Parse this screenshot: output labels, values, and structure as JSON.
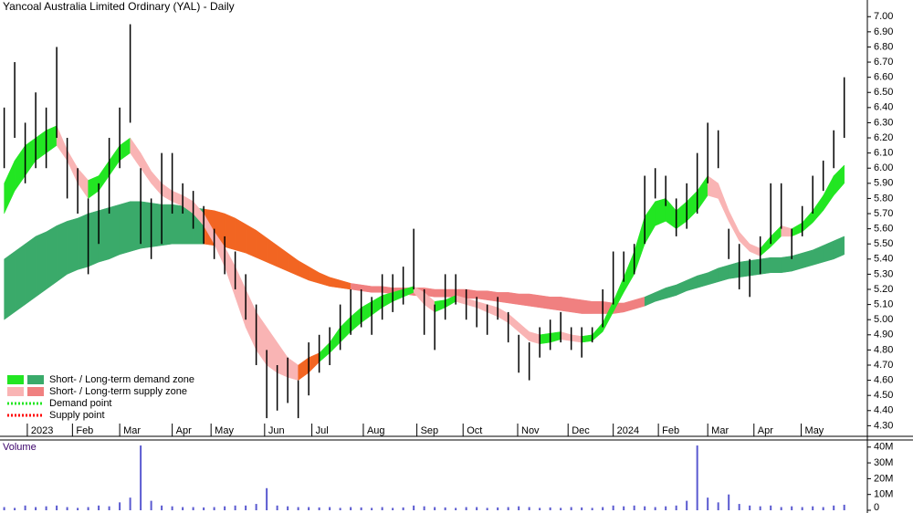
{
  "chart_data": {
    "type": "price-bars",
    "title": "Yancoal Australia Limited Ordinary (YAL) - Daily",
    "volume_title": "Volume",
    "legend": [
      "Short- / Long-term demand zone",
      "Short- / Long-term supply zone",
      "Demand point",
      "Supply point"
    ],
    "legend_colors": [
      [
        "#22e622",
        "#3aaa6a"
      ],
      [
        "#f9b4b4",
        "#f08080"
      ],
      [
        "#22e622"
      ],
      [
        "#ff0000"
      ]
    ],
    "xlim": [
      -0.4,
      82.2
    ],
    "xticks": [
      {
        "value": 2.2,
        "label": "2023"
      },
      {
        "value": 6.5,
        "label": "Feb"
      },
      {
        "value": 11,
        "label": "Mar"
      },
      {
        "value": 16,
        "label": "Apr"
      },
      {
        "value": 19.7,
        "label": "May"
      },
      {
        "value": 24.8,
        "label": "Jun"
      },
      {
        "value": 29.3,
        "label": "Jul"
      },
      {
        "value": 34.2,
        "label": "Aug"
      },
      {
        "value": 39.3,
        "label": "Sep"
      },
      {
        "value": 43.7,
        "label": "Oct"
      },
      {
        "value": 48.9,
        "label": "Nov"
      },
      {
        "value": 53.7,
        "label": "Dec"
      },
      {
        "value": 58,
        "label": "2024"
      },
      {
        "value": 62.3,
        "label": "Feb"
      },
      {
        "value": 67,
        "label": "Mar"
      },
      {
        "value": 71.4,
        "label": "Apr"
      },
      {
        "value": 75.9,
        "label": "May"
      }
    ],
    "ylim": [
      4.23,
      7.11
    ],
    "yticks": [
      {
        "value": 4.3,
        "label": "4.30"
      },
      {
        "value": 4.4,
        "label": "4.40"
      },
      {
        "value": 4.5,
        "label": "4.50"
      },
      {
        "value": 4.6,
        "label": "4.60"
      },
      {
        "value": 4.7,
        "label": "4.70"
      },
      {
        "value": 4.8,
        "label": "4.80"
      },
      {
        "value": 4.9,
        "label": "4.90"
      },
      {
        "value": 5.0,
        "label": "5.00"
      },
      {
        "value": 5.1,
        "label": "5.10"
      },
      {
        "value": 5.2,
        "label": "5.20"
      },
      {
        "value": 5.3,
        "label": "5.30"
      },
      {
        "value": 5.4,
        "label": "5.40"
      },
      {
        "value": 5.5,
        "label": "5.50"
      },
      {
        "value": 5.6,
        "label": "5.60"
      },
      {
        "value": 5.7,
        "label": "5.70"
      },
      {
        "value": 5.8,
        "label": "5.80"
      },
      {
        "value": 5.9,
        "label": "5.90"
      },
      {
        "value": 6.0,
        "label": "6.00"
      },
      {
        "value": 6.1,
        "label": "6.10"
      },
      {
        "value": 6.2,
        "label": "6.20"
      },
      {
        "value": 6.3,
        "label": "6.30"
      },
      {
        "value": 6.4,
        "label": "6.40"
      },
      {
        "value": 6.5,
        "label": "6.50"
      },
      {
        "value": 6.6,
        "label": "6.60"
      },
      {
        "value": 6.7,
        "label": "6.70"
      },
      {
        "value": 6.8,
        "label": "6.80"
      },
      {
        "value": 6.9,
        "label": "6.90"
      },
      {
        "value": 7.0,
        "label": "7.00"
      }
    ],
    "bar_color": "#000000",
    "high": [
      6.4,
      6.7,
      6.3,
      6.5,
      6.4,
      6.8,
      6.2,
      6.0,
      5.8,
      5.9,
      6.2,
      6.4,
      6.95,
      6.0,
      5.8,
      6.1,
      6.1,
      5.9,
      5.85,
      5.75,
      5.6,
      5.55,
      5.45,
      5.3,
      5.1,
      4.8,
      4.7,
      4.75,
      4.6,
      4.85,
      4.9,
      4.95,
      5.1,
      5.2,
      5.2,
      5.15,
      5.3,
      5.3,
      5.35,
      5.6,
      5.2,
      5.1,
      5.3,
      5.3,
      5.2,
      5.15,
      5.1,
      5.15,
      5.05,
      4.9,
      4.85,
      4.95,
      5.0,
      5.05,
      4.95,
      4.95,
      4.95,
      5.2,
      5.45,
      5.45,
      5.5,
      5.95,
      6.0,
      5.95,
      5.8,
      5.9,
      6.1,
      6.3,
      6.25,
      5.6,
      5.5,
      5.4,
      5.55,
      5.9,
      5.9,
      5.6,
      5.75,
      5.95,
      6.05,
      6.25,
      6.6
    ],
    "low": [
      6.0,
      6.2,
      5.9,
      6.0,
      6.0,
      6.2,
      5.8,
      5.7,
      5.3,
      5.5,
      5.7,
      6.0,
      6.3,
      5.5,
      5.4,
      5.5,
      5.7,
      5.7,
      5.6,
      5.5,
      5.4,
      5.3,
      5.2,
      5.0,
      4.7,
      4.35,
      4.4,
      4.45,
      4.35,
      4.5,
      4.65,
      4.7,
      4.8,
      4.9,
      4.95,
      4.9,
      5.0,
      5.05,
      5.1,
      5.2,
      4.9,
      4.8,
      5.0,
      5.1,
      5.0,
      4.95,
      4.9,
      5.0,
      4.85,
      4.65,
      4.6,
      4.75,
      4.8,
      4.85,
      4.8,
      4.75,
      4.85,
      4.95,
      5.1,
      5.25,
      5.3,
      5.5,
      5.8,
      5.75,
      5.55,
      5.6,
      5.7,
      5.9,
      6.0,
      5.4,
      5.2,
      5.15,
      5.3,
      5.5,
      5.6,
      5.4,
      5.55,
      5.7,
      5.85,
      6.0,
      6.2
    ],
    "bands": [
      {
        "low": [
          5.0,
          5.05,
          5.1,
          5.15,
          5.2,
          5.25,
          5.3,
          5.33,
          5.35,
          5.38,
          5.4,
          5.43,
          5.45,
          5.47,
          5.48,
          5.49,
          5.5,
          5.5,
          5.5,
          5.5,
          5.49,
          5.48,
          5.46,
          5.44,
          5.41,
          5.38,
          5.35,
          5.32,
          5.29,
          5.26,
          5.24,
          5.22,
          5.21,
          5.2,
          5.19,
          5.18,
          5.18,
          5.17,
          5.17,
          5.16,
          5.16,
          5.15,
          5.15,
          5.15,
          5.14,
          5.14,
          5.13,
          5.12,
          5.11,
          5.1,
          5.09,
          5.08,
          5.07,
          5.06,
          5.05,
          5.04,
          5.04,
          5.04,
          5.04,
          5.05,
          5.07,
          5.09,
          5.12,
          5.14,
          5.16,
          5.19,
          5.21,
          5.23,
          5.25,
          5.27,
          5.28,
          5.29,
          5.3,
          5.31,
          5.31,
          5.32,
          5.34,
          5.36,
          5.38,
          5.4,
          5.43
        ],
        "high": [
          5.4,
          5.45,
          5.5,
          5.55,
          5.58,
          5.62,
          5.65,
          5.67,
          5.7,
          5.72,
          5.74,
          5.76,
          5.78,
          5.78,
          5.77,
          5.76,
          5.76,
          5.75,
          5.74,
          5.73,
          5.72,
          5.7,
          5.67,
          5.63,
          5.59,
          5.54,
          5.49,
          5.44,
          5.39,
          5.35,
          5.31,
          5.28,
          5.26,
          5.24,
          5.23,
          5.22,
          5.22,
          5.21,
          5.21,
          5.21,
          5.21,
          5.2,
          5.2,
          5.2,
          5.2,
          5.19,
          5.19,
          5.18,
          5.18,
          5.17,
          5.17,
          5.16,
          5.15,
          5.15,
          5.14,
          5.13,
          5.12,
          5.12,
          5.11,
          5.11,
          5.13,
          5.15,
          5.18,
          5.21,
          5.23,
          5.26,
          5.29,
          5.31,
          5.34,
          5.36,
          5.38,
          5.39,
          5.4,
          5.41,
          5.41,
          5.42,
          5.44,
          5.46,
          5.49,
          5.52,
          5.55
        ],
        "colors": [
          "#3aaa6a",
          "#3aaa6a",
          "#3aaa6a",
          "#3aaa6a",
          "#3aaa6a",
          "#3aaa6a",
          "#3aaa6a",
          "#3aaa6a",
          "#3aaa6a",
          "#3aaa6a",
          "#3aaa6a",
          "#3aaa6a",
          "#3aaa6a",
          "#3aaa6a",
          "#3aaa6a",
          "#3aaa6a",
          "#3aaa6a",
          "#3aaa6a",
          "#3aaa6a",
          "#3aaa6a",
          "#f26522",
          "#f26522",
          "#f26522",
          "#f26522",
          "#f26522",
          "#f26522",
          "#f26522",
          "#f26522",
          "#f26522",
          "#f26522",
          "#f26522",
          "#f26522",
          "#f26522",
          "#f26522",
          "#f08080",
          "#f08080",
          "#f08080",
          "#f08080",
          "#f08080",
          "#f08080",
          "#f08080",
          "#f08080",
          "#f08080",
          "#f08080",
          "#f08080",
          "#f08080",
          "#f08080",
          "#f08080",
          "#f08080",
          "#f08080",
          "#f08080",
          "#f08080",
          "#f08080",
          "#f08080",
          "#f08080",
          "#f08080",
          "#f08080",
          "#f08080",
          "#f08080",
          "#f08080",
          "#f08080",
          "#f08080",
          "#3aaa6a",
          "#3aaa6a",
          "#3aaa6a",
          "#3aaa6a",
          "#3aaa6a",
          "#3aaa6a",
          "#3aaa6a",
          "#3aaa6a",
          "#3aaa6a",
          "#3aaa6a",
          "#3aaa6a",
          "#3aaa6a",
          "#3aaa6a",
          "#3aaa6a",
          "#3aaa6a",
          "#3aaa6a",
          "#3aaa6a",
          "#3aaa6a",
          "#3aaa6a"
        ]
      },
      {
        "low": [
          5.7,
          5.85,
          5.95,
          6.05,
          6.1,
          6.15,
          6.05,
          5.9,
          5.8,
          5.85,
          5.95,
          6.05,
          6.1,
          6.0,
          5.9,
          5.82,
          5.78,
          5.75,
          5.7,
          5.62,
          5.5,
          5.35,
          5.15,
          4.95,
          4.8,
          4.7,
          4.65,
          4.62,
          4.6,
          4.65,
          4.72,
          4.78,
          4.85,
          4.92,
          4.98,
          5.03,
          5.08,
          5.12,
          5.15,
          5.18,
          5.1,
          5.05,
          5.08,
          5.12,
          5.1,
          5.08,
          5.05,
          5.02,
          4.98,
          4.92,
          4.86,
          4.84,
          4.85,
          4.87,
          4.86,
          4.85,
          4.86,
          4.92,
          5.05,
          5.18,
          5.3,
          5.5,
          5.62,
          5.65,
          5.6,
          5.65,
          5.72,
          5.82,
          5.8,
          5.65,
          5.52,
          5.45,
          5.42,
          5.48,
          5.55,
          5.55,
          5.58,
          5.64,
          5.72,
          5.82,
          5.9
        ],
        "high": [
          5.9,
          6.05,
          6.15,
          6.2,
          6.25,
          6.28,
          6.12,
          6.0,
          5.92,
          5.95,
          6.05,
          6.15,
          6.2,
          6.1,
          5.98,
          5.9,
          5.85,
          5.82,
          5.78,
          5.7,
          5.58,
          5.48,
          5.35,
          5.2,
          5.05,
          4.95,
          4.85,
          4.75,
          4.7,
          4.75,
          4.78,
          4.85,
          4.95,
          5.02,
          5.08,
          5.12,
          5.16,
          5.18,
          5.2,
          5.22,
          5.18,
          5.12,
          5.13,
          5.16,
          5.14,
          5.12,
          5.1,
          5.08,
          5.04,
          4.98,
          4.92,
          4.9,
          4.91,
          4.92,
          4.9,
          4.89,
          4.9,
          4.98,
          5.12,
          5.28,
          5.45,
          5.68,
          5.78,
          5.8,
          5.72,
          5.78,
          5.85,
          5.95,
          5.9,
          5.72,
          5.58,
          5.5,
          5.47,
          5.55,
          5.62,
          5.6,
          5.64,
          5.72,
          5.82,
          5.95,
          6.02
        ],
        "colors": [
          "#22e622",
          "#22e622",
          "#22e622",
          "#22e622",
          "#22e622",
          "#22e622",
          "#f9b4b4",
          "#f9b4b4",
          "#f9b4b4",
          "#22e622",
          "#22e622",
          "#22e622",
          "#22e622",
          "#f9b4b4",
          "#f9b4b4",
          "#f9b4b4",
          "#f9b4b4",
          "#f9b4b4",
          "#f9b4b4",
          "#f9b4b4",
          "#f9b4b4",
          "#f9b4b4",
          "#f9b4b4",
          "#f9b4b4",
          "#f9b4b4",
          "#f9b4b4",
          "#f9b4b4",
          "#f9b4b4",
          "#f9b4b4",
          "#f26522",
          "#f26522",
          "#22e622",
          "#22e622",
          "#22e622",
          "#22e622",
          "#22e622",
          "#22e622",
          "#22e622",
          "#22e622",
          "#22e622",
          "#f9b4b4",
          "#f9b4b4",
          "#22e622",
          "#22e622",
          "#f9b4b4",
          "#f9b4b4",
          "#f9b4b4",
          "#f9b4b4",
          "#f9b4b4",
          "#f9b4b4",
          "#f9b4b4",
          "#f9b4b4",
          "#22e622",
          "#22e622",
          "#f9b4b4",
          "#f9b4b4",
          "#22e622",
          "#22e622",
          "#22e622",
          "#22e622",
          "#22e622",
          "#22e622",
          "#22e622",
          "#22e622",
          "#22e622",
          "#22e622",
          "#22e622",
          "#22e622",
          "#f9b4b4",
          "#f9b4b4",
          "#f9b4b4",
          "#f9b4b4",
          "#f9b4b4",
          "#22e622",
          "#22e622",
          "#f9b4b4",
          "#22e622",
          "#22e622",
          "#22e622",
          "#22e622",
          "#22e622"
        ]
      }
    ],
    "volume": [
      2,
      1.5,
      3,
      2,
      2.5,
      3,
      2,
      1.5,
      2,
      3,
      2.5,
      5,
      8,
      41,
      6,
      3,
      2.5,
      2,
      2,
      1.8,
      2,
      2.5,
      3,
      3,
      4,
      14,
      3,
      2.5,
      2,
      2,
      1.8,
      2,
      1.5,
      2,
      1.8,
      1.5,
      2,
      1.5,
      1.8,
      3,
      2.5,
      2,
      1.8,
      1.5,
      2,
      2,
      1.5,
      1.8,
      2,
      2.5,
      2,
      1.5,
      1.8,
      1.5,
      2,
      1.8,
      1.5,
      2,
      3,
      2.5,
      3,
      2.5,
      2,
      2.5,
      3,
      6,
      41,
      8,
      5,
      10,
      4,
      3,
      2.5,
      3,
      2,
      2.5,
      2,
      2.5,
      2,
      3,
      3.5
    ],
    "volume_color": "#5a5ad0",
    "vlim": [
      0,
      44.5
    ],
    "vticks": [
      0,
      {
        "value": 10,
        "label": "10M"
      },
      {
        "value": 20,
        "label": "20M"
      },
      {
        "value": 30,
        "label": "30M"
      },
      {
        "value": 40,
        "label": "40M"
      }
    ]
  }
}
